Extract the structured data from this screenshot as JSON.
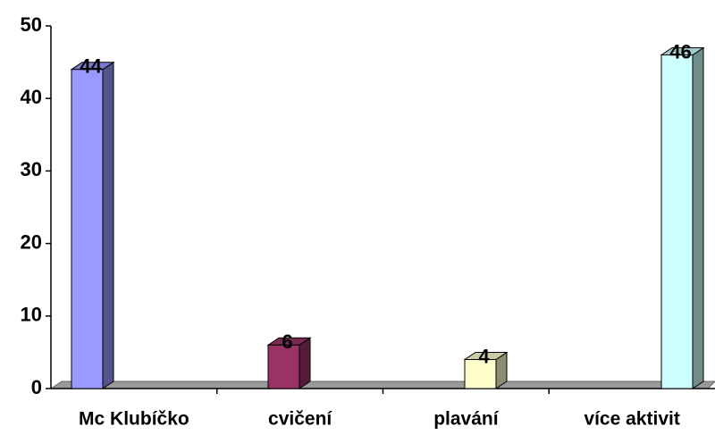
{
  "chart_data": {
    "type": "bar3d",
    "categories": [
      "Mc Klubíčko",
      "cvičení",
      "plavání",
      "více aktivit"
    ],
    "values": [
      44,
      6,
      4,
      46
    ],
    "colors": [
      "#9999ff",
      "#993366",
      "#ffffcc",
      "#ccffff"
    ],
    "ylim": [
      0,
      50
    ],
    "yticks": [
      0,
      10,
      20,
      30,
      40,
      50
    ]
  }
}
